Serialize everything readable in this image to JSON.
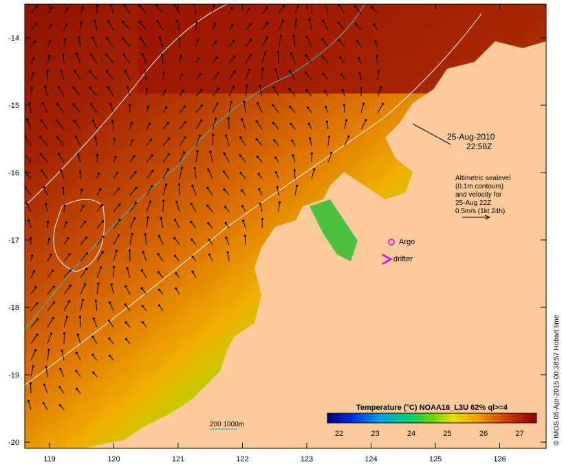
{
  "map": {
    "date_label": "25-Aug-2010",
    "time_label": "22:58Z",
    "altimetry_note": [
      "Altimetric sealevel",
      "(0.1m contours)",
      "and velocity for",
      "25-Aug 22Z",
      "0.5m/s (1kt 24h)"
    ],
    "argo_label": "Argo",
    "drifter_label": "drifter",
    "isobath_label": "200  1000m",
    "colorbar_title": "Temperature (°C) NOAA16_L3U 62% ql>=4",
    "colorbar_ticks": [
      "22",
      "23",
      "24",
      "25",
      "26",
      "27"
    ],
    "lat_ticks": [
      "-14",
      "-15",
      "-16",
      "-17",
      "-18",
      "-19",
      "-20"
    ],
    "lon_ticks": [
      "119",
      "120",
      "121",
      "122",
      "123",
      "124",
      "125",
      "126"
    ],
    "credit": "© IMOS 05-Apr-2015 00:38:57 Hobart time",
    "colors": {
      "land": "#fbcb9e",
      "warm": "#9c1500",
      "mid": "#e07800",
      "cool": "#8ad800",
      "cold": "#0020c0",
      "argo": "#e000e0",
      "isobath": "#40c8c8"
    }
  }
}
